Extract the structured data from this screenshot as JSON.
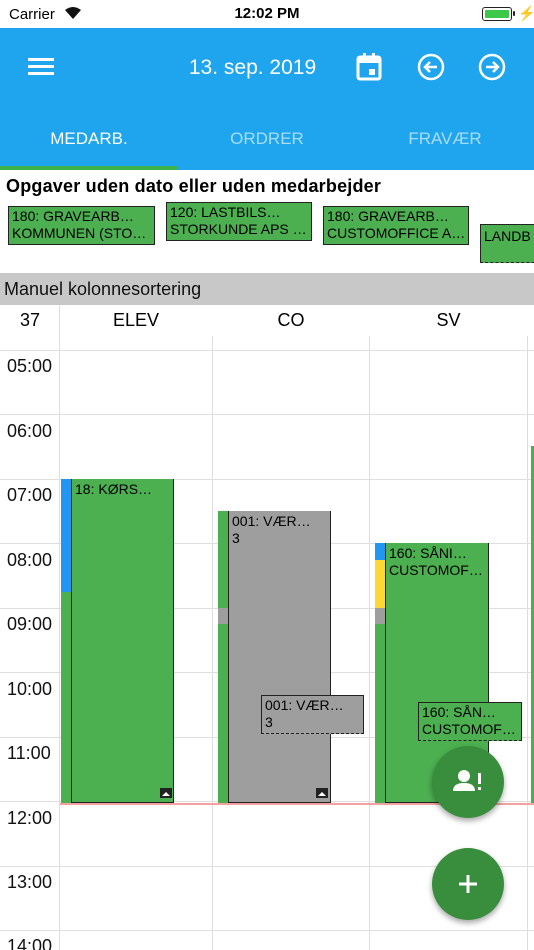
{
  "status_bar": {
    "carrier": "Carrier",
    "time": "12:02 PM"
  },
  "header": {
    "date": "13. sep. 2019"
  },
  "tabs": [
    {
      "label": "MEDARB.",
      "active": true
    },
    {
      "label": "ORDRER",
      "active": false
    },
    {
      "label": "FRAVÆR",
      "active": false
    }
  ],
  "undated": {
    "title": "Opgaver uden dato eller uden medarbejder",
    "chips": [
      {
        "line1": "180: GRAVEARB…",
        "line2": "KOMMUNEN (STO…"
      },
      {
        "line1": "120: LASTBILS…",
        "line2": "STORKUNDE APS …"
      },
      {
        "line1": "180: GRAVEARB…",
        "line2": "CUSTOMOFFICE A…"
      },
      {
        "line1": "LANDB",
        "line2": ""
      }
    ]
  },
  "sort_bar": {
    "label": "Manuel kolonnesortering"
  },
  "columns": {
    "week": "37",
    "names": [
      "ELEV",
      "CO",
      "SV"
    ]
  },
  "hours": [
    "05:00",
    "06:00",
    "07:00",
    "08:00",
    "09:00",
    "10:00",
    "11:00",
    "12:00",
    "13:00",
    "14:00"
  ],
  "appointments": {
    "elev": {
      "line1": "18: KØRS…",
      "line2": ""
    },
    "co": {
      "line1": "001: VÆR…",
      "line2": "3"
    },
    "co_overlay": {
      "line1": "001: VÆR…",
      "line2": "3"
    },
    "sv": {
      "line1": "160: SÅNI…",
      "line2": "CUSTOMOF…"
    },
    "sv_overlay": {
      "line1": "160: SÅN…",
      "line2": "CUSTOMOF…"
    }
  },
  "colors": {
    "primary": "#1fa5ee",
    "appointment": "#4caf50",
    "fab": "#388e3c",
    "now_line": "#f2a0a0"
  }
}
